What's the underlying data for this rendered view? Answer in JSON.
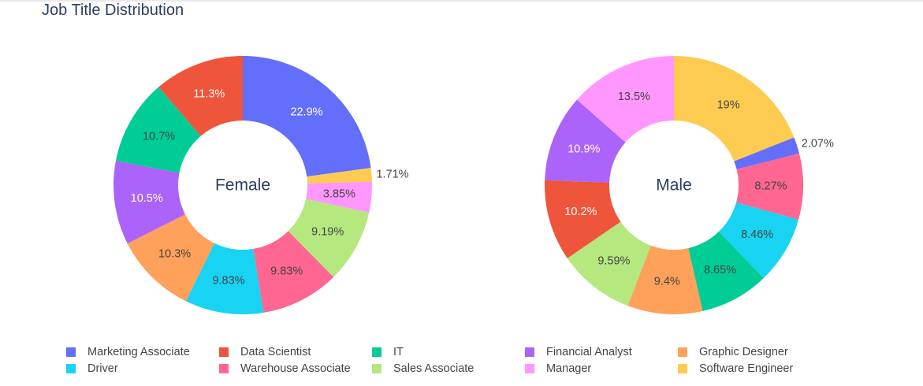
{
  "chart_data": {
    "type": "pie",
    "title": "Job Title Distribution",
    "hole": 0.5,
    "legend_position": "bottom",
    "categories": [
      "Marketing Associate",
      "Data Scientist",
      "IT",
      "Financial Analyst",
      "Graphic Designer",
      "Driver",
      "Warehouse Associate",
      "Sales Associate",
      "Manager",
      "Software Engineer"
    ],
    "colors": [
      "#636efa",
      "#EF553B",
      "#00cc96",
      "#ab63fa",
      "#FFA15A",
      "#19d3f3",
      "#FF6692",
      "#B6E880",
      "#FF97FF",
      "#FECB52"
    ],
    "pies": [
      {
        "name": "Female",
        "slices": [
          {
            "label": "Marketing Associate",
            "value": 22.9,
            "text": "22.9%",
            "color": "#636efa"
          },
          {
            "label": "Software Engineer",
            "value": 1.71,
            "text": "1.71%",
            "color": "#FECB52"
          },
          {
            "label": "Manager",
            "value": 3.85,
            "text": "3.85%",
            "color": "#FF97FF"
          },
          {
            "label": "Sales Associate",
            "value": 9.19,
            "text": "9.19%",
            "color": "#B6E880"
          },
          {
            "label": "Warehouse Associate",
            "value": 9.83,
            "text": "9.83%",
            "color": "#FF6692"
          },
          {
            "label": "Driver",
            "value": 9.83,
            "text": "9.83%",
            "color": "#19d3f3"
          },
          {
            "label": "Graphic Designer",
            "value": 10.3,
            "text": "10.3%",
            "color": "#FFA15A"
          },
          {
            "label": "Financial Analyst",
            "value": 10.5,
            "text": "10.5%",
            "color": "#ab63fa"
          },
          {
            "label": "IT",
            "value": 10.7,
            "text": "10.7%",
            "color": "#00cc96"
          },
          {
            "label": "Data Scientist",
            "value": 11.3,
            "text": "11.3%",
            "color": "#EF553B"
          }
        ]
      },
      {
        "name": "Male",
        "slices": [
          {
            "label": "Software Engineer",
            "value": 19,
            "text": "19%",
            "color": "#FECB52"
          },
          {
            "label": "Marketing Associate",
            "value": 2.07,
            "text": "2.07%",
            "color": "#636efa"
          },
          {
            "label": "Warehouse Associate",
            "value": 8.27,
            "text": "8.27%",
            "color": "#FF6692"
          },
          {
            "label": "Driver",
            "value": 8.46,
            "text": "8.46%",
            "color": "#19d3f3"
          },
          {
            "label": "IT",
            "value": 8.65,
            "text": "8.65%",
            "color": "#00cc96"
          },
          {
            "label": "Graphic Designer",
            "value": 9.4,
            "text": "9.4%",
            "color": "#FFA15A"
          },
          {
            "label": "Sales Associate",
            "value": 9.59,
            "text": "9.59%",
            "color": "#B6E880"
          },
          {
            "label": "Data Scientist",
            "value": 10.2,
            "text": "10.2%",
            "color": "#EF553B"
          },
          {
            "label": "Financial Analyst",
            "value": 10.9,
            "text": "10.9%",
            "color": "#ab63fa"
          },
          {
            "label": "Manager",
            "value": 13.5,
            "text": "13.5%",
            "color": "#FF97FF"
          }
        ]
      }
    ]
  }
}
